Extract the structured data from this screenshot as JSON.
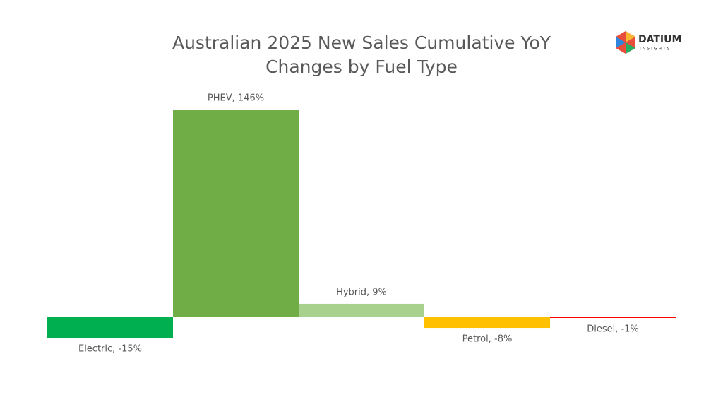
{
  "chart_data": {
    "type": "bar",
    "title": [
      "Australian 2025 New Sales Cumulative YoY",
      "Changes by Fuel Type"
    ],
    "categories": [
      "Electric",
      "PHEV",
      "Hybrid",
      "Petrol",
      "Diesel"
    ],
    "values": [
      -15,
      146,
      9,
      -8,
      -1
    ],
    "value_labels": [
      "Electric, -15%",
      "PHEV, 146%",
      "Hybrid, 9%",
      "Petrol, -8%",
      "Diesel, -1%"
    ],
    "colors": [
      "#00b050",
      "#70ad47",
      "#a9d18e",
      "#ffc000",
      "#ff0000"
    ]
  },
  "logo": {
    "name": "DATIUM",
    "tagline": "INSIGHTS"
  }
}
